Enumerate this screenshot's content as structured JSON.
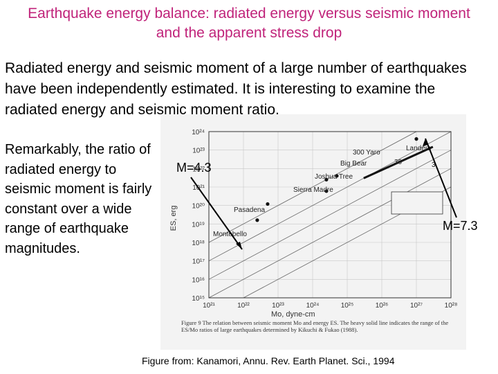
{
  "title": "Earthquake energy balance: radiated energy versus seismic moment and the apparent stress drop",
  "intro": "Radiated energy and seismic moment of a large number of earthquakes have been independently estimated. It is interesting to examine the radiated energy and seismic moment ratio.",
  "side_text": "Remarkably, the ratio of radiated energy to seismic moment is fairly constant over a wide range of earthquake magnitudes.",
  "annotations": {
    "m_small": "M=4.3",
    "m_large": "M=7.3"
  },
  "caption": "Figure from: Kanamori, Annu. Rev. Earth Planet. Sci., 1994",
  "figure": {
    "ylabel": "ES, erg",
    "xlabel": "Mo, dyne-cm",
    "y_ticks": [
      "10²⁴",
      "10²³",
      "10²²",
      "10²¹",
      "10²⁰",
      "10¹⁹",
      "10¹⁸",
      "10¹⁷",
      "10¹⁶",
      "10¹⁵"
    ],
    "x_ticks": [
      "10²¹",
      "10²²",
      "10²³",
      "10²⁴",
      "10²⁵",
      "10²⁶",
      "10²⁷",
      "10²⁸"
    ],
    "event_labels": [
      "Landers",
      "300 Yaro",
      "30",
      "3",
      "Big Bear",
      "Joshua Tree",
      "Sierra Madre",
      "Pasadena",
      "Montebello"
    ],
    "kikuchi_label": "Kikuchi and Fukao (1988)",
    "fig_caption": "Figure 9 The relation between seismic moment Mo and energy ES. The heavy solid line indicates the range of the ES/Mo ratios of large earthquakes determined by Kikuchi & Fukao (1988)."
  },
  "chart_data": {
    "type": "scatter",
    "title": "",
    "xlabel": "Mo, dyne-cm",
    "ylabel": "ES, erg",
    "xscale": "log",
    "yscale": "log",
    "xlim": [
      1e+21,
      1e+28
    ],
    "ylim": [
      1000000000000000.0,
      1e+24
    ],
    "series": [
      {
        "name": "",
        "points": [
          {
            "label": "Montebello",
            "x": 2.5e+22,
            "y": 1.6e+19
          },
          {
            "label": "Pasadena",
            "x": 5e+22,
            "y": 1.2e+20
          },
          {
            "label": "Sierra Madre",
            "x": 2.5e+24,
            "y": 6e+20
          },
          {
            "label": "Joshua Tree",
            "x": 2.5e+24,
            "y": 2.5e+21
          },
          {
            "label": "Big Bear",
            "x": 5e+24,
            "y": 4e+21
          },
          {
            "label": "Landers",
            "x": 1e+27,
            "y": 4e+23
          }
        ]
      }
    ],
    "kikuchi_range": {
      "x": [
        3e+25,
        3e+27
      ],
      "y": [
        3e+21,
        1.5e+23
      ]
    }
  }
}
